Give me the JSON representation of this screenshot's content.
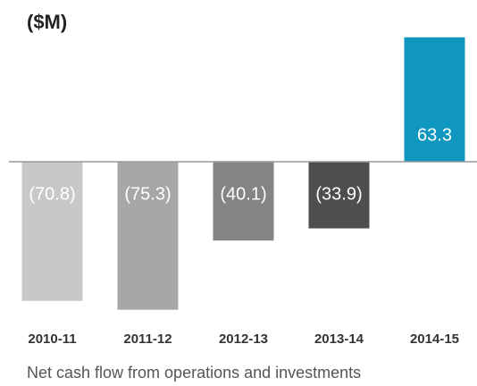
{
  "chart_data": {
    "type": "bar",
    "title": "($M)",
    "categories": [
      "2010-11",
      "2011-12",
      "2012-13",
      "2013-14",
      "2014-15"
    ],
    "values": [
      -70.8,
      -75.3,
      -40.1,
      -33.9,
      63.3
    ],
    "value_labels": [
      "(70.8)",
      "(75.3)",
      "(40.1)",
      "(33.9)",
      "63.3"
    ],
    "colors": [
      "#c8c8c9",
      "#a7a7a9",
      "#848486",
      "#4e4e50",
      "#0f97c0"
    ],
    "ylim": [
      -80,
      66
    ],
    "caption": "Net cash flow from operations and investments"
  }
}
